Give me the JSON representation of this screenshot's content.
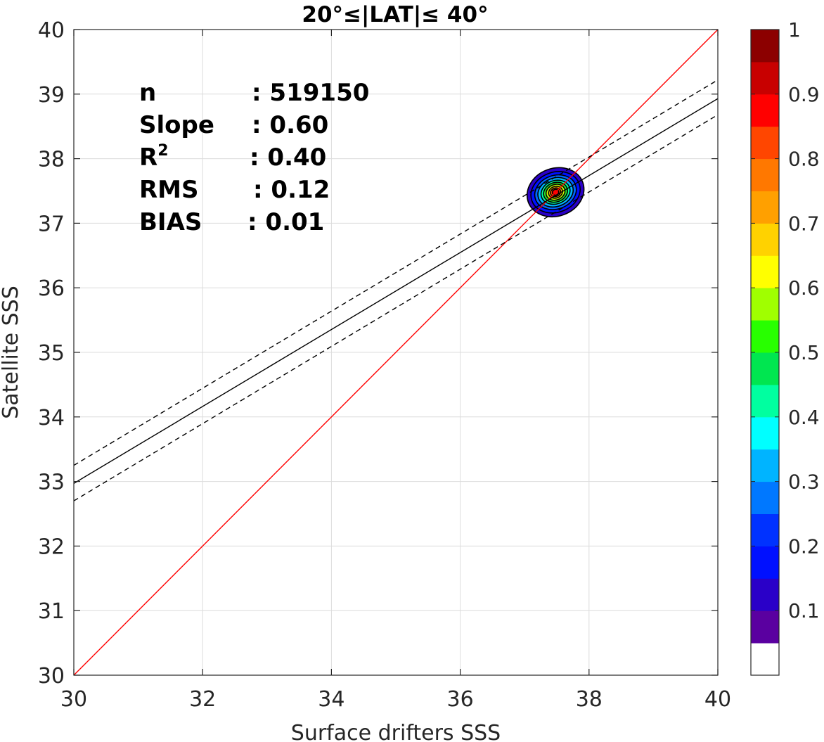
{
  "chart_data": {
    "type": "scatter",
    "plot_kind": "density contour scatter with regression lines",
    "title": "20°≤|LAT|≤ 40°",
    "xlabel": "Surface drifters SSS",
    "ylabel": "Satellite SSS",
    "xlim": [
      30,
      40
    ],
    "ylim": [
      30,
      40
    ],
    "xticks": [
      30,
      32,
      34,
      36,
      38,
      40
    ],
    "yticks": [
      30,
      31,
      32,
      33,
      34,
      35,
      36,
      37,
      38,
      39,
      40
    ],
    "grid": true,
    "stats": [
      {
        "label": "n",
        "value": ": 519150"
      },
      {
        "label": "Slope",
        "value": ": 0.60"
      },
      {
        "label": "R",
        "sup": "2",
        "value": ": 0.40"
      },
      {
        "label": "RMS",
        "value": ": 0.12"
      },
      {
        "label": "BIAS",
        "value": ": 0.01"
      }
    ],
    "lines": [
      {
        "style": "identity",
        "color": "#ff0000",
        "points": [
          [
            30,
            30
          ],
          [
            40,
            40
          ]
        ]
      },
      {
        "style": "fit",
        "color": "#000000",
        "points": [
          [
            30,
            32.97
          ],
          [
            40,
            38.93
          ]
        ]
      },
      {
        "style": "fit-upper",
        "color": "#000000",
        "dashed": true,
        "points": [
          [
            30,
            33.25
          ],
          [
            40,
            39.22
          ]
        ]
      },
      {
        "style": "fit-lower",
        "color": "#000000",
        "dashed": true,
        "points": [
          [
            30,
            32.7
          ],
          [
            40,
            38.68
          ]
        ]
      }
    ],
    "density": {
      "center": [
        37.48,
        37.48
      ],
      "contours": [
        {
          "level": 0.05,
          "rx": 0.45,
          "ry": 0.37,
          "color": "#2a00c8"
        },
        {
          "level": 0.15,
          "rx": 0.39,
          "ry": 0.31,
          "color": "#0010ff"
        },
        {
          "level": 0.2,
          "rx": 0.33,
          "ry": 0.26,
          "color": "#0064ff"
        },
        {
          "level": 0.3,
          "rx": 0.28,
          "ry": 0.22,
          "color": "#00b4ff"
        },
        {
          "level": 0.4,
          "rx": 0.23,
          "ry": 0.18,
          "color": "#00ffa0"
        },
        {
          "level": 0.5,
          "rx": 0.19,
          "ry": 0.15,
          "color": "#28e628"
        },
        {
          "level": 0.6,
          "rx": 0.15,
          "ry": 0.12,
          "color": "#c8ff00"
        },
        {
          "level": 0.7,
          "rx": 0.11,
          "ry": 0.09,
          "color": "#ffb400"
        },
        {
          "level": 0.8,
          "rx": 0.08,
          "ry": 0.065,
          "color": "#ff5000"
        },
        {
          "level": 0.9,
          "rx": 0.05,
          "ry": 0.045,
          "color": "#ff0000"
        }
      ]
    },
    "colorbar": {
      "range": [
        0,
        1
      ],
      "tick_labels": [
        "0.1",
        "0.2",
        "0.3",
        "0.4",
        "0.5",
        "0.6",
        "0.7",
        "0.8",
        "0.9",
        "1"
      ],
      "tick_values": [
        0.1,
        0.2,
        0.3,
        0.4,
        0.5,
        0.6,
        0.7,
        0.8,
        0.9,
        1.0
      ],
      "colors": [
        "#ffffff",
        "#5a00a0",
        "#2a00c8",
        "#0010ff",
        "#0032ff",
        "#0078ff",
        "#00b4ff",
        "#00ffff",
        "#00ffa0",
        "#00e650",
        "#28ff00",
        "#a0ff00",
        "#ffff00",
        "#ffd200",
        "#ffa000",
        "#ff7800",
        "#ff4600",
        "#ff0000",
        "#c80000",
        "#8c0000"
      ]
    }
  }
}
